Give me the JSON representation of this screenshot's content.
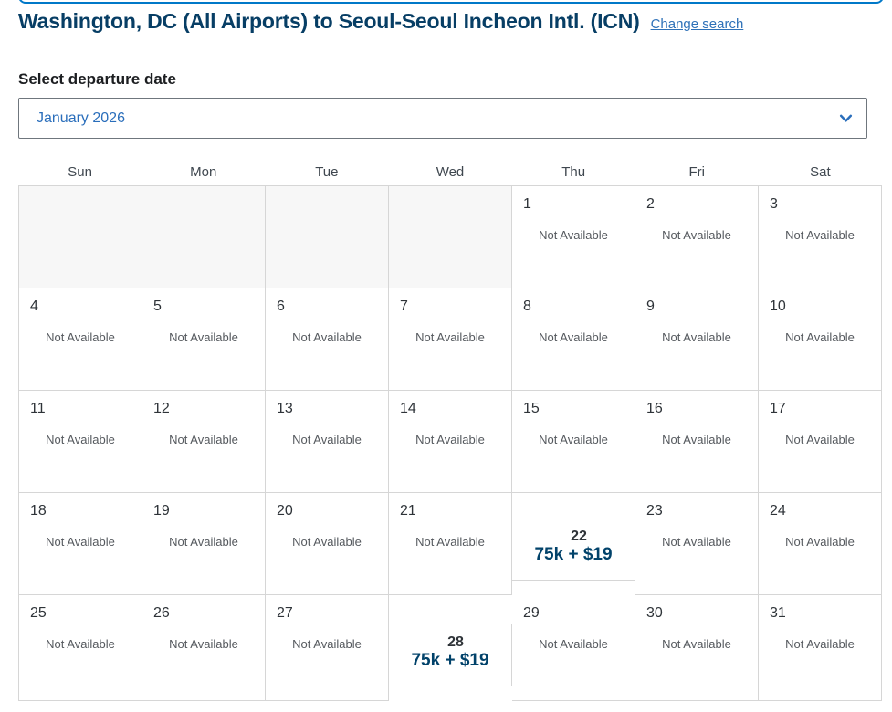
{
  "header": {
    "title": "Washington, DC (All Airports) to Seoul-Seoul Incheon Intl. (ICN)",
    "change_search_label": "Change search"
  },
  "departure_picker": {
    "label": "Select departure date",
    "selected_month": "January 2026",
    "chevron_icon": "chevron-down"
  },
  "calendar": {
    "weekdays": [
      "Sun",
      "Mon",
      "Tue",
      "Wed",
      "Thu",
      "Fri",
      "Sat"
    ],
    "not_available_label": "Not Available",
    "cells": [
      {
        "day": "",
        "type": "empty"
      },
      {
        "day": "",
        "type": "empty"
      },
      {
        "day": "",
        "type": "empty"
      },
      {
        "day": "",
        "type": "empty"
      },
      {
        "day": "1",
        "type": "na"
      },
      {
        "day": "2",
        "type": "na"
      },
      {
        "day": "3",
        "type": "na"
      },
      {
        "day": "4",
        "type": "na"
      },
      {
        "day": "5",
        "type": "na"
      },
      {
        "day": "6",
        "type": "na"
      },
      {
        "day": "7",
        "type": "na"
      },
      {
        "day": "8",
        "type": "na"
      },
      {
        "day": "9",
        "type": "na"
      },
      {
        "day": "10",
        "type": "na"
      },
      {
        "day": "11",
        "type": "na"
      },
      {
        "day": "12",
        "type": "na"
      },
      {
        "day": "13",
        "type": "na"
      },
      {
        "day": "14",
        "type": "na"
      },
      {
        "day": "15",
        "type": "na"
      },
      {
        "day": "16",
        "type": "na"
      },
      {
        "day": "17",
        "type": "na"
      },
      {
        "day": "18",
        "type": "na"
      },
      {
        "day": "19",
        "type": "na"
      },
      {
        "day": "20",
        "type": "na"
      },
      {
        "day": "21",
        "type": "na"
      },
      {
        "day": "22",
        "type": "price",
        "price": "75k + $19"
      },
      {
        "day": "23",
        "type": "na"
      },
      {
        "day": "24",
        "type": "na"
      },
      {
        "day": "25",
        "type": "na"
      },
      {
        "day": "26",
        "type": "na"
      },
      {
        "day": "27",
        "type": "na"
      },
      {
        "day": "28",
        "type": "price",
        "price": "75k + $19"
      },
      {
        "day": "29",
        "type": "na"
      },
      {
        "day": "30",
        "type": "na"
      },
      {
        "day": "31",
        "type": "na"
      }
    ]
  },
  "colors": {
    "title-navy": "#073e65",
    "link-blue": "#2e71b8",
    "month-blue": "#2a6ebb",
    "price-navy": "#01426a",
    "na-gray": "#55595e",
    "date-gray": "#2e3338",
    "weekday-gray": "#3f474f",
    "grid-border": "#d6d6d6",
    "empty-cell-bg": "#f7f7f7",
    "input-border": "#6f767d",
    "focus-blue": "#0078c8",
    "label-black": "#1c1e21"
  }
}
